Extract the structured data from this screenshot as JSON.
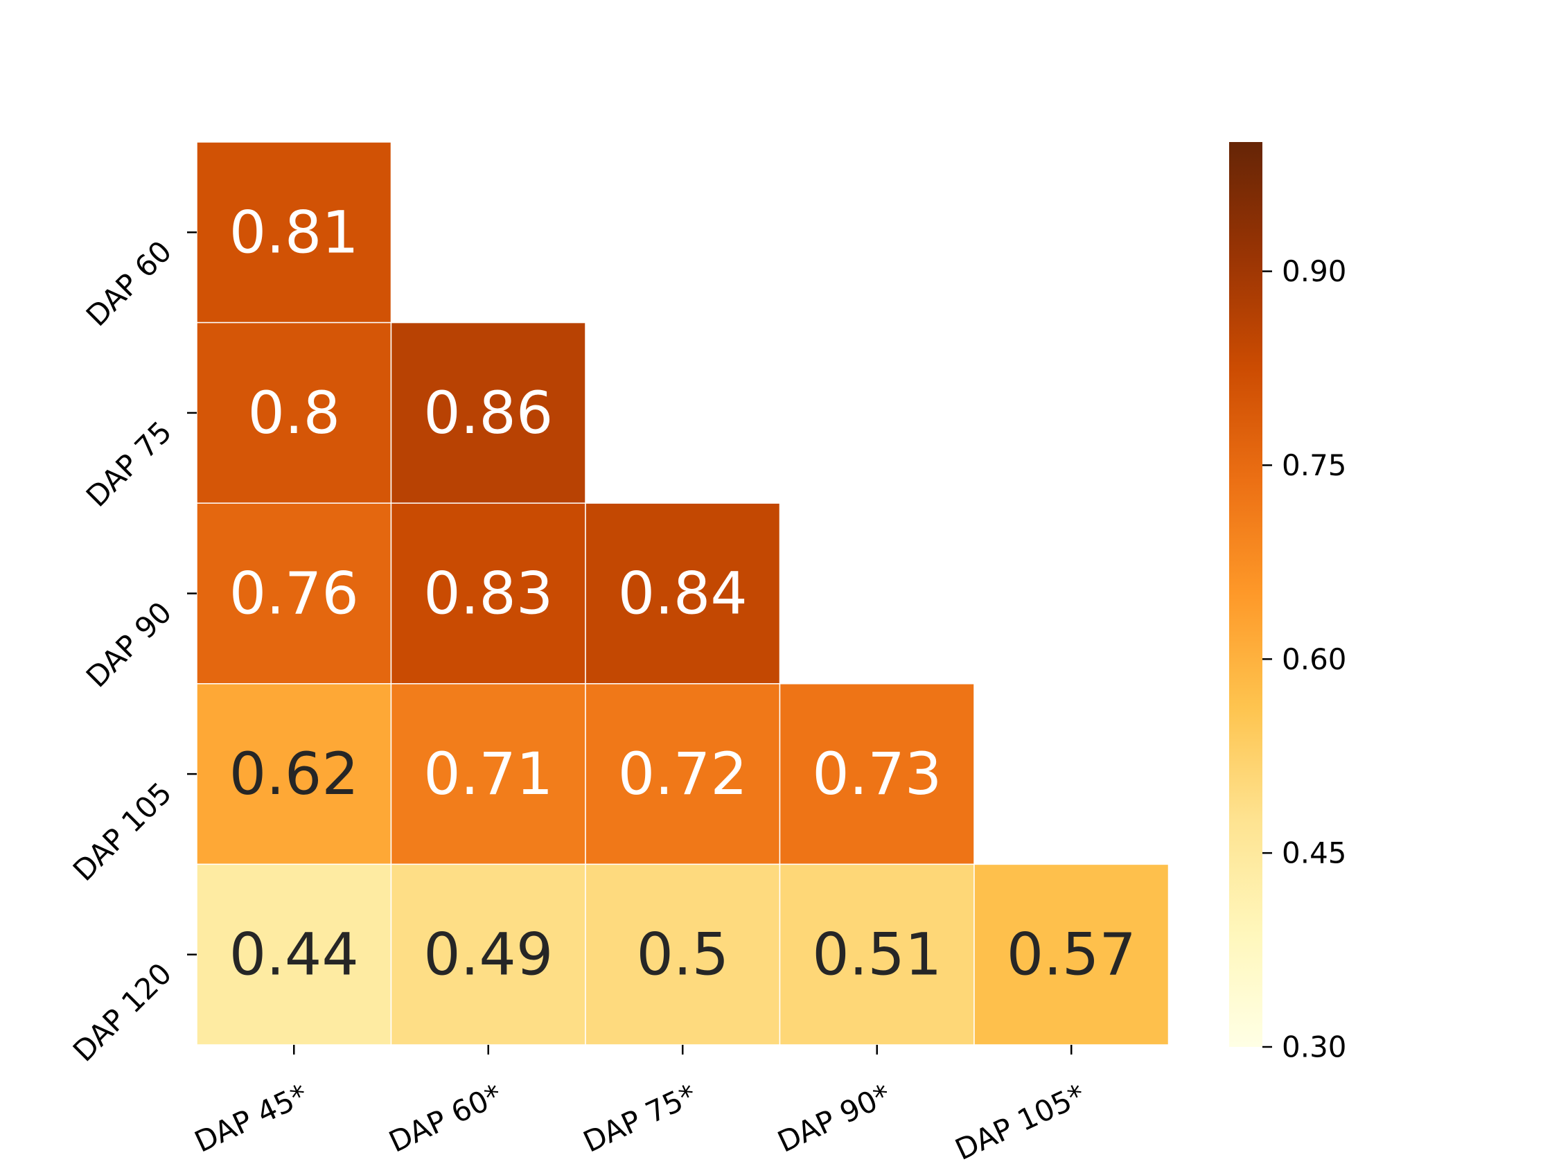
{
  "chart_data": {
    "type": "heatmap",
    "title": "",
    "xlabel": "",
    "ylabel": "",
    "x_categories": [
      "DAP 45*",
      "DAP 60*",
      "DAP 75*",
      "DAP 90*",
      "DAP 105*"
    ],
    "y_categories": [
      "DAP 60",
      "DAP 75",
      "DAP 90",
      "DAP 105",
      "DAP 120"
    ],
    "values": [
      [
        0.81,
        null,
        null,
        null,
        null
      ],
      [
        0.8,
        0.86,
        null,
        null,
        null
      ],
      [
        0.76,
        0.83,
        0.84,
        null,
        null
      ],
      [
        0.62,
        0.71,
        0.72,
        0.73,
        null
      ],
      [
        0.44,
        0.49,
        0.5,
        0.51,
        0.57
      ]
    ],
    "mask": "upper-triangle",
    "colormap": "YlOrBr",
    "colorbar": {
      "range": [
        0.3,
        1.0
      ],
      "ticks": [
        0.3,
        0.45,
        0.6,
        0.75,
        0.9
      ],
      "tick_labels": [
        "0.30",
        "0.45",
        "0.60",
        "0.75",
        "0.90"
      ]
    },
    "colormap_stops": [
      "#ffffe5",
      "#fff7bc",
      "#fee391",
      "#fec44f",
      "#fe9929",
      "#ec7014",
      "#cc4c02",
      "#993404",
      "#662506"
    ],
    "annotation_colors": {
      "light": "#ffffff",
      "dark": "#262626"
    },
    "grid": false,
    "legend": "colorbar-right"
  }
}
